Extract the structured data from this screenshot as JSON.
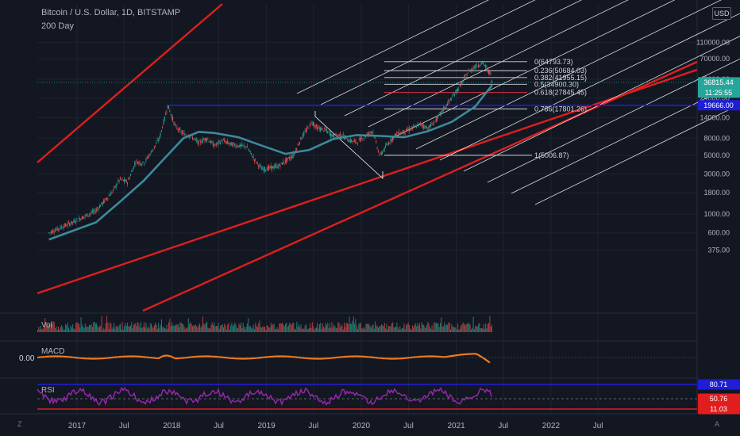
{
  "header": {
    "title": "Bitcoin / U.S. Dollar, 1D, BITSTAMP",
    "ma_label": "200 Day",
    "currency_button": "USD"
  },
  "panes": {
    "volume": "Vol",
    "macd": "MACD",
    "rsi": "RSI",
    "macd_value": "0.00"
  },
  "footer": {
    "z_button": "Z",
    "a_button": "A"
  },
  "colors": {
    "background": "#131722",
    "up": "#26a69a",
    "down": "#ef5350",
    "channel": "#e01e1e",
    "pitchfork": "#ffffff",
    "ma": "#3d8a9a",
    "level": "#1e1ed6",
    "macd": "#f0781e",
    "rsi": "#9c27b0"
  },
  "chart_data": {
    "type": "line",
    "title": "Bitcoin / U.S. Dollar, 1D, BITSTAMP",
    "ylabel": "USD",
    "yscale": "log",
    "ylim": [
      280,
      110000
    ],
    "y_tick_labels": [
      "110000.00",
      "70000.00",
      "40000.00",
      "24000.00",
      "14000.00",
      "8000.00",
      "5000.00",
      "3000.00",
      "1800.00",
      "1000.00",
      "600.00",
      "375.00"
    ],
    "x_tick_labels": [
      "2017",
      "Jul",
      "2018",
      "Jul",
      "2019",
      "Jul",
      "2020",
      "Jul",
      "2021",
      "Jul",
      "2022",
      "Jul"
    ],
    "price_tags": [
      {
        "label": "36815.44",
        "sub": "11:25:55",
        "value": 36815.44,
        "color": "#26a69a"
      },
      {
        "label": "19666.00",
        "value": 19666,
        "color": "#1e1ed6"
      }
    ],
    "fib_levels": [
      {
        "label": "0(64793.73)",
        "value": 64793.73
      },
      {
        "label": "0.236(50684.03)",
        "value": 50684.03
      },
      {
        "label": "0.382(41955.15)",
        "value": 41955.15
      },
      {
        "label": "0.5(34900.30)",
        "value": 34900.3
      },
      {
        "label": "0.618(27845.45)",
        "value": 27845.45
      },
      {
        "label": "0.786(17801.26)",
        "value": 17801.26
      },
      {
        "label": "1(5006.87)",
        "value": 5006.87
      }
    ],
    "horizontal_level": {
      "value": 19666
    },
    "series": [
      {
        "role": "price",
        "points": [
          [
            "2016-09",
            600
          ],
          [
            "2016-12",
            800
          ],
          [
            "2017-03",
            1100
          ],
          [
            "2017-05",
            1800
          ],
          [
            "2017-06",
            2600
          ],
          [
            "2017-07",
            2400
          ],
          [
            "2017-08",
            4200
          ],
          [
            "2017-09",
            4000
          ],
          [
            "2017-10",
            5500
          ],
          [
            "2017-11",
            8000
          ],
          [
            "2017-12-17",
            19500
          ],
          [
            "2018-01",
            11000
          ],
          [
            "2018-02",
            9000
          ],
          [
            "2018-03",
            8500
          ],
          [
            "2018-04",
            7000
          ],
          [
            "2018-05",
            8000
          ],
          [
            "2018-06",
            6500
          ],
          [
            "2018-07",
            7500
          ],
          [
            "2018-08",
            6800
          ],
          [
            "2018-09",
            6500
          ],
          [
            "2018-10",
            6400
          ],
          [
            "2018-11",
            4500
          ],
          [
            "2018-12",
            3400
          ],
          [
            "2019-02",
            3700
          ],
          [
            "2019-04",
            5000
          ],
          [
            "2019-05",
            8000
          ],
          [
            "2019-06-26",
            12500
          ],
          [
            "2019-07",
            10500
          ],
          [
            "2019-08",
            10000
          ],
          [
            "2019-09",
            8500
          ],
          [
            "2019-10",
            8800
          ],
          [
            "2019-11",
            7500
          ],
          [
            "2019-12",
            7200
          ],
          [
            "2020-02",
            9800
          ],
          [
            "2020-03-12",
            4900
          ],
          [
            "2020-04",
            7000
          ],
          [
            "2020-05",
            9000
          ],
          [
            "2020-06",
            9500
          ],
          [
            "2020-07",
            10500
          ],
          [
            "2020-08",
            11800
          ],
          [
            "2020-09",
            10500
          ],
          [
            "2020-10",
            13000
          ],
          [
            "2020-11",
            18000
          ],
          [
            "2020-12",
            24000
          ],
          [
            "2021-01",
            33000
          ],
          [
            "2021-02",
            48000
          ],
          [
            "2021-03",
            57000
          ],
          [
            "2021-04-14",
            63000
          ],
          [
            "2021-05",
            45000
          ],
          [
            "2021-05-19",
            36815.44
          ]
        ]
      },
      {
        "role": "ma",
        "name": "200 Day",
        "points": [
          [
            "2016-09",
            500
          ],
          [
            "2017-03",
            800
          ],
          [
            "2017-06",
            1400
          ],
          [
            "2017-09",
            2500
          ],
          [
            "2017-12",
            5000
          ],
          [
            "2018-02",
            8000
          ],
          [
            "2018-04",
            9500
          ],
          [
            "2018-06",
            9200
          ],
          [
            "2018-09",
            8200
          ],
          [
            "2018-12",
            6500
          ],
          [
            "2019-03",
            5200
          ],
          [
            "2019-06",
            5800
          ],
          [
            "2019-09",
            7800
          ],
          [
            "2019-12",
            8700
          ],
          [
            "2020-03",
            8500
          ],
          [
            "2020-06",
            8200
          ],
          [
            "2020-09",
            9700
          ],
          [
            "2020-12",
            12500
          ],
          [
            "2021-03",
            19000
          ],
          [
            "2021-05-19",
            34000
          ]
        ]
      }
    ],
    "indicators": {
      "rsi": {
        "levels": [
          80.71,
          50.76,
          11.03
        ]
      },
      "macd": {
        "zero_label": "0.00"
      }
    }
  }
}
